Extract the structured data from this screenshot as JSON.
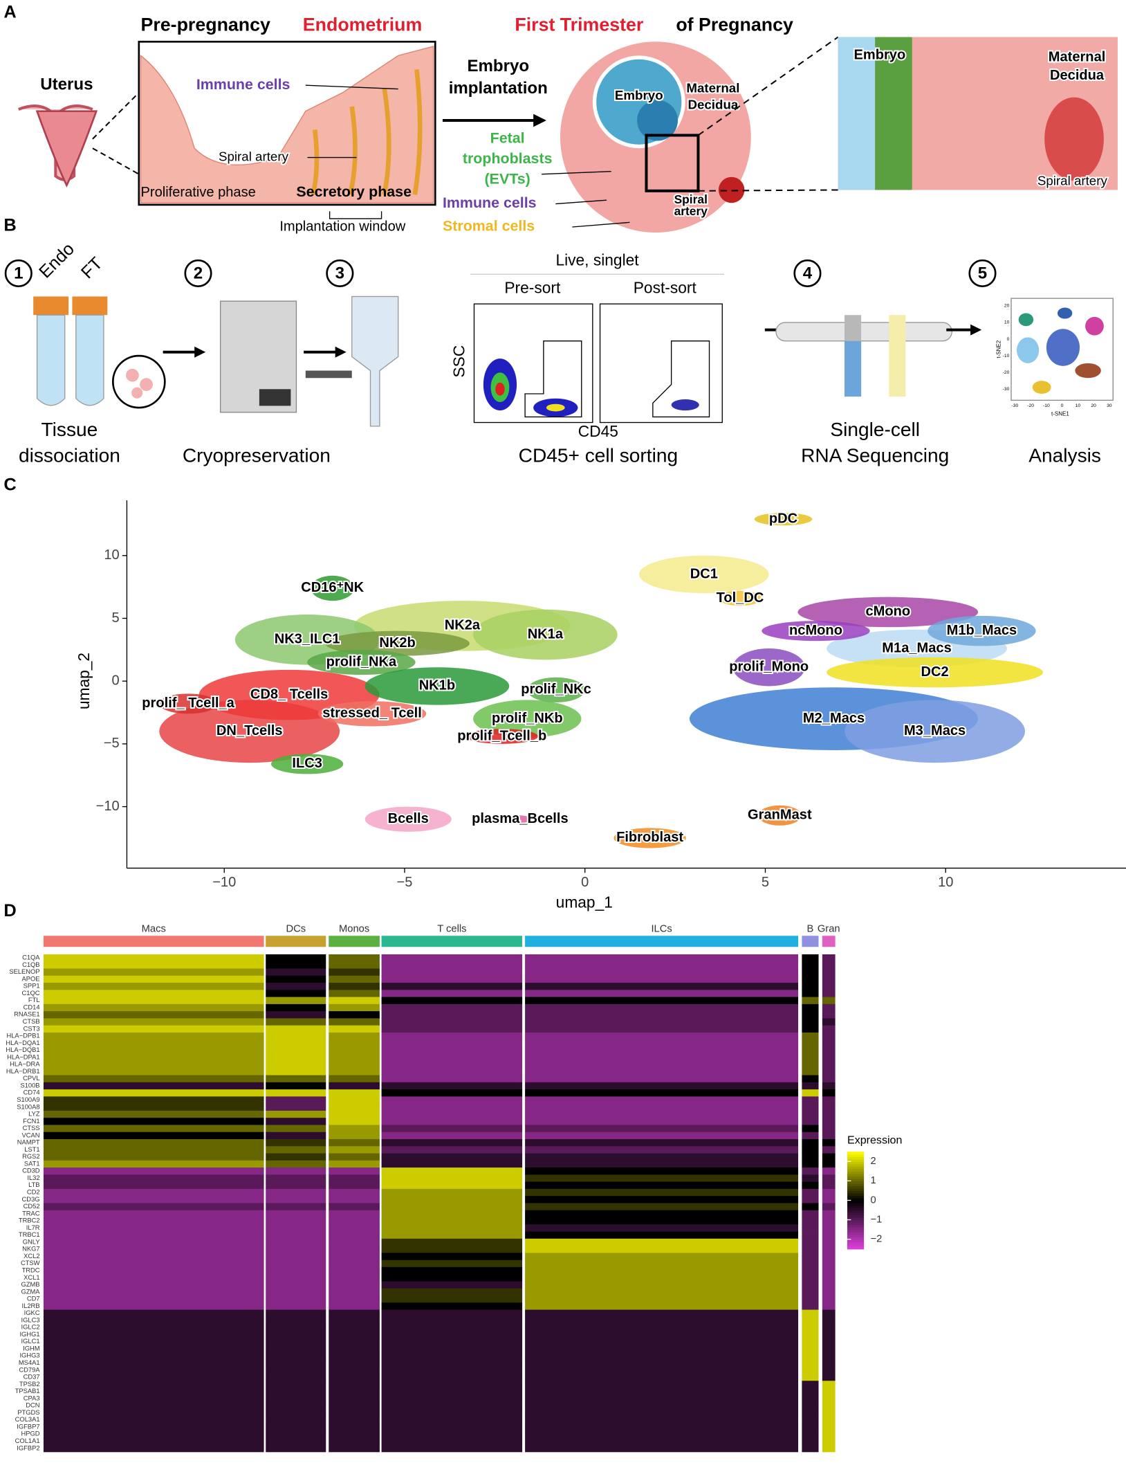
{
  "panel_a": {
    "label": "A",
    "uterus": "Uterus",
    "title_pre": "Pre-pregnancy",
    "title_endo": "Endometrium",
    "immune_cells": "Immune cells",
    "spiral_artery": "Spiral artery",
    "proliferative": "Proliferative phase",
    "secretory": "Secretory phase",
    "implantation_window": "Implantation window",
    "embryo_implantation": [
      "Embryo",
      "implantation"
    ],
    "title_first": "First Trimester",
    "title_preg": "of Pregnancy",
    "embryo": "Embryo",
    "maternal_decidua": [
      "Maternal",
      "Decidua"
    ],
    "fetal_trophoblasts": [
      "Fetal",
      "trophoblasts",
      "(EVTs)"
    ],
    "immune_cells_2": "Immune cells",
    "stromal_cells": "Stromal cells",
    "spiral_artery_2": [
      "Spiral",
      "artery"
    ],
    "zoom_embryo": "Embryo",
    "zoom_decidua": [
      "Maternal",
      "Decidua"
    ],
    "zoom_artery": "Spiral artery"
  },
  "panel_b": {
    "label": "B",
    "steps": [
      "1",
      "2",
      "3",
      "4",
      "5"
    ],
    "endo": "Endo",
    "ft": "FT",
    "tissue": [
      "Tissue",
      "dissociation"
    ],
    "cryo": "Cryopreservation",
    "live": "Live, singlet",
    "pre": "Pre-sort",
    "post": "Post-sort",
    "ssc": "SSC",
    "cd45": "CD45",
    "sorting": "CD45+ cell sorting",
    "scrna": [
      "Single-cell",
      "RNA Sequencing"
    ],
    "analysis": "Analysis",
    "tsne_x": "t-SNE1",
    "tsne_y": "t-SNE2",
    "tsne_xticks": [
      "-30",
      "-20",
      "-10",
      "0",
      "10",
      "20",
      "30"
    ],
    "tsne_yticks": [
      "20",
      "10",
      "0",
      "-10",
      "-20",
      "-30"
    ]
  },
  "chart_data": [
    {
      "panel": "C",
      "type": "scatter",
      "xlabel": "umap_1",
      "ylabel": "umap_2",
      "xlim": [
        -12.7,
        15
      ],
      "ylim": [
        -14.9,
        14.4
      ],
      "xticks": [
        {
          "value": -10,
          "label": "−10"
        },
        {
          "value": -5,
          "label": "−5"
        },
        0,
        5,
        10
      ],
      "yticks": [
        {
          "value": -10,
          "label": "−10"
        },
        {
          "value": -5,
          "label": "−5"
        },
        0,
        5,
        10
      ],
      "clusters": [
        {
          "name": "M2_Macs",
          "color": "#3f7fd2",
          "x": 6.9,
          "y": -3,
          "spread": [
            4,
            2.5
          ]
        },
        {
          "name": "M3_Macs",
          "color": "#7f9fe2",
          "x": 9.7,
          "y": -4,
          "spread": [
            2.5,
            2.5
          ]
        },
        {
          "name": "DN_Tcells",
          "color": "#e84444",
          "x": -9.3,
          "y": -4,
          "spread": [
            2.5,
            2.5
          ]
        },
        {
          "name": "CD8_ Tcells",
          "color": "#ee3a3a",
          "x": -8.2,
          "y": -1.1,
          "spread": [
            2.5,
            2
          ]
        },
        {
          "name": "NK2a",
          "color": "#c8dc70",
          "x": -3.4,
          "y": 4.4,
          "spread": [
            3,
            2
          ]
        },
        {
          "name": "NK3_ILC1",
          "color": "#8cc870",
          "x": -7.7,
          "y": 3.3,
          "spread": [
            2,
            2
          ]
        },
        {
          "name": "NK1a",
          "color": "#a8d060",
          "x": -1.1,
          "y": 3.7,
          "spread": [
            2,
            2
          ]
        },
        {
          "name": "M1a_Macs",
          "color": "#bcdcf5",
          "x": 9.2,
          "y": 2.6,
          "spread": [
            2.5,
            1.5
          ]
        },
        {
          "name": "cMono",
          "color": "#a846a8",
          "x": 8.4,
          "y": 5.5,
          "spread": [
            2.5,
            1.2
          ]
        },
        {
          "name": "DC2",
          "color": "#f0e020",
          "x": 9.7,
          "y": 0.7,
          "spread": [
            3,
            1.2
          ]
        },
        {
          "name": "DC1",
          "color": "#f5eb8c",
          "x": 3.3,
          "y": 8.5,
          "spread": [
            1.8,
            1.5
          ]
        },
        {
          "name": "M1b_Macs",
          "color": "#6fa8dc",
          "x": 11,
          "y": 4,
          "spread": [
            1.5,
            1.2
          ]
        },
        {
          "name": "ncMono",
          "color": "#9a3fbf",
          "x": 6.4,
          "y": 4,
          "spread": [
            1.5,
            0.8
          ]
        },
        {
          "name": "prolif_Mono",
          "color": "#8a4dbf",
          "x": 5.1,
          "y": 1.1,
          "spread": [
            1,
            1.5
          ]
        },
        {
          "name": "NK2b",
          "color": "#7a9a40",
          "x": -5.2,
          "y": 3,
          "spread": [
            2,
            1
          ]
        },
        {
          "name": "prolif_NKa",
          "color": "#58a848",
          "x": -6.2,
          "y": 1.5,
          "spread": [
            1.5,
            1
          ]
        },
        {
          "name": "NK1b",
          "color": "#2a9a3a",
          "x": -4.1,
          "y": -0.4,
          "spread": [
            2,
            1.5
          ]
        },
        {
          "name": "stressed_ Tcell",
          "color": "#f07060",
          "x": -5.9,
          "y": -2.6,
          "spread": [
            1.5,
            1
          ]
        },
        {
          "name": "prolif_NKb",
          "color": "#6cc050",
          "x": -1.6,
          "y": -3,
          "spread": [
            1.5,
            1.5
          ]
        },
        {
          "name": "prolif_NKc",
          "color": "#5ab04a",
          "x": -0.8,
          "y": -0.7,
          "spread": [
            0.8,
            1
          ]
        },
        {
          "name": "prolif_Tcell_b",
          "color": "#e02020",
          "x": -2.3,
          "y": -4.4,
          "spread": [
            1,
            0.6
          ]
        },
        {
          "name": "prolif_ Tcell_a",
          "color": "#d83030",
          "x": -11,
          "y": -1.8,
          "spread": [
            0.8,
            0.8
          ]
        },
        {
          "name": "CD16⁺NK",
          "color": "#2e9b2e",
          "x": -7,
          "y": 7.4,
          "spread": [
            0.6,
            1
          ]
        },
        {
          "name": "ILC3",
          "color": "#4caf3a",
          "x": -7.7,
          "y": -6.6,
          "spread": [
            1,
            0.8
          ]
        },
        {
          "name": "Tol_DC",
          "color": "#f2c230",
          "x": 4.3,
          "y": 6.6,
          "spread": [
            0.6,
            0.6
          ]
        },
        {
          "name": "pDC",
          "color": "#e8c020",
          "x": 5.5,
          "y": 12.9,
          "spread": [
            0.8,
            0.5
          ]
        },
        {
          "name": "Bcells",
          "color": "#f4a6c8",
          "x": -4.9,
          "y": -11,
          "spread": [
            1.2,
            1
          ]
        },
        {
          "name": "plasma_Bcells",
          "color": "#e060a0",
          "x": -1.8,
          "y": -11,
          "spread": [
            0.3,
            0.3
          ]
        },
        {
          "name": "Fibroblast",
          "color": "#f58a1f",
          "x": 1.8,
          "y": -12.5,
          "spread": [
            1,
            0.8
          ]
        },
        {
          "name": "GranMast",
          "color": "#f08020",
          "x": 5.4,
          "y": -10.7,
          "spread": [
            0.6,
            0.8
          ]
        }
      ]
    },
    {
      "panel": "D",
      "type": "heatmap",
      "legend_title": "Expression",
      "colors": [
        "#e040e0",
        "#000000",
        "#ffff00"
      ],
      "colorbar_lim": [
        -2.5,
        2.5
      ],
      "colorbar_ticks": [
        2,
        1,
        0,
        {
          "value": -1,
          "label": "−1"
        },
        {
          "value": -2,
          "label": "−2"
        }
      ],
      "groups": [
        {
          "name": "Macs",
          "color": "#f07870"
        },
        {
          "name": "DCs",
          "color": "#c8a030"
        },
        {
          "name": "Monos",
          "color": "#5ab040"
        },
        {
          "name": "T cells",
          "color": "#2ab890"
        },
        {
          "name": "ILCs",
          "color": "#20b0e0"
        },
        {
          "name": "B",
          "color": "#9090e0"
        },
        {
          "name": "Gran",
          "color": "#e060c0"
        }
      ],
      "genes": [
        "C1QA",
        "C1QB",
        "SELENOP",
        "APOE",
        "SPP1",
        "C1QC",
        "FTL",
        "CD14",
        "RNASE1",
        "CTSB",
        "CST3",
        "HLA−DPB1",
        "HLA−DQA1",
        "HLA−DQB1",
        "HLA−DPA1",
        "HLA−DRA",
        "HLA−DRB1",
        "CPVL",
        "S100B",
        "CD74",
        "S100A9",
        "S100A8",
        "LYZ",
        "FCN1",
        "CTSS",
        "VCAN",
        "NAMPT",
        "LST1",
        "RGS2",
        "SAT1",
        "CD3D",
        "IL32",
        "LTB",
        "CD2",
        "CD3G",
        "CD52",
        "TRAC",
        "TRBC2",
        "IL7R",
        "TRBC1",
        "GNLY",
        "NKG7",
        "XCL2",
        "CTSW",
        "TRDC",
        "XCL1",
        "GZMB",
        "GZMA",
        "CD7",
        "IL2RB",
        "IGKC",
        "IGLC3",
        "IGLC2",
        "IGHG1",
        "IGLC1",
        "IGHM",
        "IGHG3",
        "MS4A1",
        "CD79A",
        "CD37",
        "TPSB2",
        "TPSAB1",
        "CPA3",
        "DCN",
        "PTGDS",
        "COL3A1",
        "IGFBP7",
        "HPGD",
        "COL1A1",
        "IGFBP2"
      ],
      "values": [
        [
          2,
          0,
          1,
          -1.5,
          -1.5,
          0,
          -1
        ],
        [
          2,
          0,
          1,
          -1.5,
          -1.5,
          0,
          -1
        ],
        [
          1.5,
          -0.5,
          0.5,
          -1.5,
          -1.5,
          0,
          -1
        ],
        [
          2,
          0,
          1,
          -1.5,
          -1.5,
          0,
          -1
        ],
        [
          1.5,
          -0.5,
          0.5,
          -0.5,
          -0.5,
          0,
          -1
        ],
        [
          2,
          0,
          1,
          -1.5,
          -1.5,
          0,
          -1
        ],
        [
          2,
          1.5,
          2,
          0,
          0,
          1,
          1
        ],
        [
          1.5,
          0,
          1.5,
          -1,
          -1,
          0,
          -1
        ],
        [
          1,
          -0.5,
          0,
          -1,
          -1,
          0,
          -1
        ],
        [
          1.5,
          1,
          1,
          -1,
          -1,
          0,
          -0.5
        ],
        [
          2,
          2,
          2,
          -1,
          -1,
          0,
          -1
        ],
        [
          1.5,
          2,
          1.5,
          -1.5,
          -1.5,
          1,
          -1
        ],
        [
          1.5,
          2,
          1.5,
          -1.5,
          -1.5,
          1,
          -1
        ],
        [
          1.5,
          2,
          1.5,
          -1.5,
          -1.5,
          1,
          -1
        ],
        [
          1.5,
          2,
          1.5,
          -1.5,
          -1.5,
          1,
          -1
        ],
        [
          1.5,
          2,
          1.5,
          -1.5,
          -1.5,
          1,
          -1
        ],
        [
          1.5,
          2,
          1.5,
          -1.5,
          -1.5,
          1,
          -1
        ],
        [
          1,
          1,
          1,
          -1.5,
          -1.5,
          0,
          -1
        ],
        [
          -0.5,
          0,
          -0.5,
          -0.5,
          -0.5,
          -0.5,
          -0.5
        ],
        [
          2,
          2,
          2,
          0,
          0,
          2,
          0
        ],
        [
          0.5,
          -1,
          2,
          -1.5,
          -1.5,
          -1,
          -1
        ],
        [
          0.5,
          -1,
          2,
          -1.5,
          -1.5,
          -1,
          -1
        ],
        [
          1,
          1.5,
          2,
          -1.5,
          -1.5,
          -1,
          -1
        ],
        [
          0,
          -0.5,
          2,
          -1.5,
          -1.5,
          -1,
          -1
        ],
        [
          1,
          1,
          1.5,
          -1,
          -1,
          0,
          -1
        ],
        [
          0,
          -0.5,
          1.5,
          -1.5,
          -1.5,
          -1,
          -1
        ],
        [
          1,
          0.5,
          1,
          -0.5,
          -0.5,
          0,
          0
        ],
        [
          1,
          1,
          1.5,
          -1,
          -1,
          0,
          -1
        ],
        [
          1,
          0.5,
          1,
          -0.5,
          -0.5,
          0,
          0
        ],
        [
          1.5,
          1,
          1.5,
          -0.5,
          -0.5,
          0,
          0
        ],
        [
          -1.5,
          -1.5,
          -1.5,
          2,
          0,
          -1,
          -1.5
        ],
        [
          -1,
          -1,
          -1,
          2,
          0.5,
          -0.5,
          -1
        ],
        [
          -1,
          -1,
          -1,
          2,
          0,
          0,
          -1
        ],
        [
          -1.5,
          -1.5,
          -1.5,
          1.5,
          0.5,
          -1,
          -1.5
        ],
        [
          -1.5,
          -1.5,
          -1.5,
          1.5,
          0,
          -1,
          -1.5
        ],
        [
          -1,
          -1,
          -1,
          1.5,
          0.5,
          0,
          -1
        ],
        [
          -1.5,
          -1.5,
          -1.5,
          1.5,
          0,
          -1,
          -1.5
        ],
        [
          -1.5,
          -1.5,
          -1.5,
          1.5,
          0,
          -1,
          -1.5
        ],
        [
          -1.5,
          -1.5,
          -1.5,
          1.5,
          -0.5,
          -1,
          -1.5
        ],
        [
          -1.5,
          -1.5,
          -1.5,
          1.5,
          0,
          -1,
          -1.5
        ],
        [
          -1.5,
          -1.5,
          -1.5,
          0.5,
          2,
          -1,
          -1.5
        ],
        [
          -1.5,
          -1.5,
          -1.5,
          0.5,
          2,
          -1,
          -1.5
        ],
        [
          -1.5,
          -1.5,
          -1.5,
          0,
          1.5,
          -1,
          -1.5
        ],
        [
          -1.5,
          -1.5,
          -1.5,
          0.5,
          1.5,
          -1,
          -1.5
        ],
        [
          -1.5,
          -1.5,
          -1.5,
          0,
          1.5,
          -1,
          -1.5
        ],
        [
          -1.5,
          -1.5,
          -1.5,
          0,
          1.5,
          -1,
          -1.5
        ],
        [
          -1.5,
          -1.5,
          -1.5,
          -0.5,
          1.5,
          -1,
          -1.5
        ],
        [
          -1.5,
          -1.5,
          -1.5,
          0.5,
          1.5,
          -1,
          -1.5
        ],
        [
          -1.5,
          -1.5,
          -1.5,
          0.5,
          1.5,
          -1,
          -1.5
        ],
        [
          -1.5,
          -1.5,
          -1.5,
          0,
          1.5,
          -1,
          -1.5
        ],
        [
          -0.5,
          -0.5,
          -0.5,
          -0.5,
          -0.5,
          2,
          -0.5
        ],
        [
          -0.5,
          -0.5,
          -0.5,
          -0.5,
          -0.5,
          2,
          -0.5
        ],
        [
          -0.5,
          -0.5,
          -0.5,
          -0.5,
          -0.5,
          2,
          -0.5
        ],
        [
          -0.5,
          -0.5,
          -0.5,
          -0.5,
          -0.5,
          2,
          -0.5
        ],
        [
          -0.5,
          -0.5,
          -0.5,
          -0.5,
          -0.5,
          2,
          -0.5
        ],
        [
          -0.5,
          -0.5,
          -0.5,
          -0.5,
          -0.5,
          2,
          -0.5
        ],
        [
          -0.5,
          -0.5,
          -0.5,
          -0.5,
          -0.5,
          2,
          -0.5
        ],
        [
          -0.5,
          -0.5,
          -0.5,
          -0.5,
          -0.5,
          2,
          -0.5
        ],
        [
          -0.5,
          -0.5,
          -0.5,
          -0.5,
          -0.5,
          2,
          -0.5
        ],
        [
          -0.5,
          -0.5,
          -0.5,
          -0.5,
          -0.5,
          2,
          -0.5
        ],
        [
          -0.5,
          -0.5,
          -0.5,
          -0.5,
          -0.5,
          -0.5,
          2
        ],
        [
          -0.5,
          -0.5,
          -0.5,
          -0.5,
          -0.5,
          -0.5,
          2
        ],
        [
          -0.5,
          -0.5,
          -0.5,
          -0.5,
          -0.5,
          -0.5,
          2
        ],
        [
          -0.5,
          -0.5,
          -0.5,
          -0.5,
          -0.5,
          -0.5,
          2
        ],
        [
          -0.5,
          -0.5,
          -0.5,
          -0.5,
          -0.5,
          -0.5,
          2
        ],
        [
          -0.5,
          -0.5,
          -0.5,
          -0.5,
          -0.5,
          -0.5,
          2
        ],
        [
          -0.5,
          -0.5,
          -0.5,
          -0.5,
          -0.5,
          -0.5,
          2
        ],
        [
          -0.5,
          -0.5,
          -0.5,
          -0.5,
          -0.5,
          -0.5,
          2
        ],
        [
          -0.5,
          -0.5,
          -0.5,
          -0.5,
          -0.5,
          -0.5,
          2
        ],
        [
          -0.5,
          -0.5,
          -0.5,
          -0.5,
          -0.5,
          -0.5,
          2
        ]
      ]
    }
  ]
}
